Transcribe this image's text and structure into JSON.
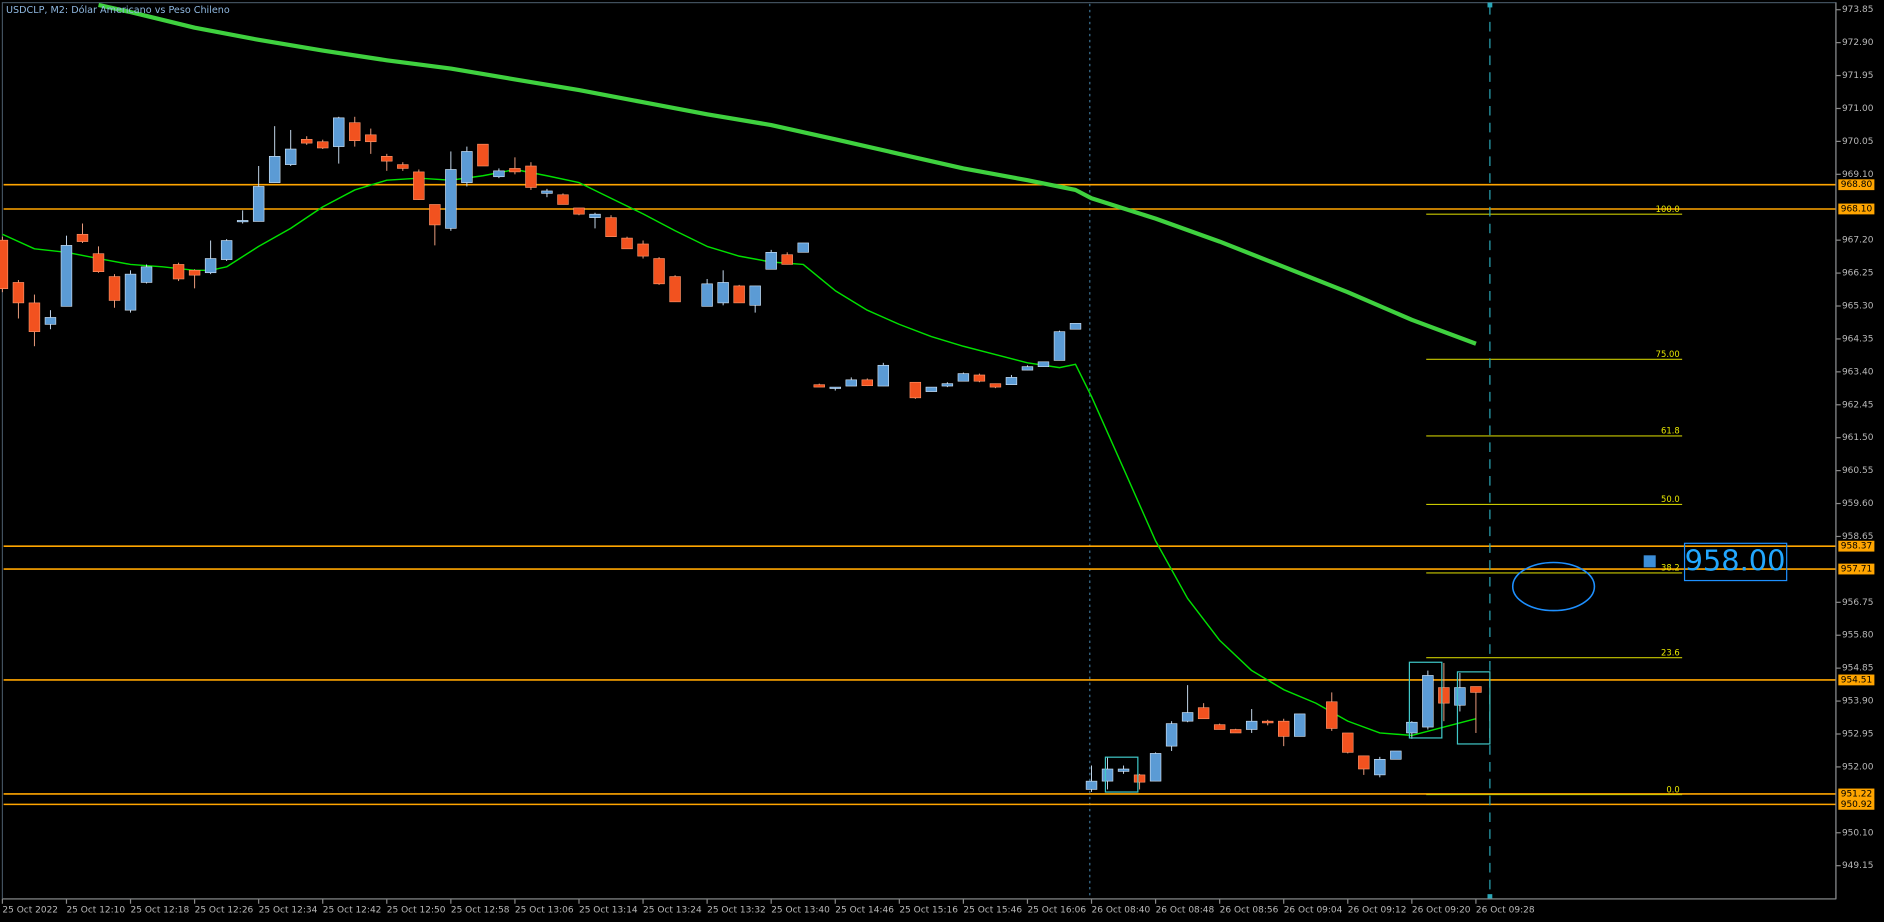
{
  "chart_data": {
    "type": "candlestick",
    "title": "USDCLP, M2:  Dólar Americano vs Peso Chileno",
    "categories": [
      "25 Oct 2022",
      null,
      null,
      null,
      "25 Oct 12:10",
      null,
      null,
      null,
      "25 Oct 12:18",
      null,
      null,
      null,
      "25 Oct 12:26",
      null,
      null,
      null,
      "25 Oct 12:34",
      null,
      null,
      null,
      "25 Oct 12:42",
      null,
      null,
      null,
      "25 Oct 12:50",
      null,
      null,
      null,
      "25 Oct 12:58",
      null,
      null,
      null,
      "25 Oct 13:06",
      null,
      null,
      null,
      "25 Oct 13:14",
      null,
      null,
      null,
      "25 Oct 13:24",
      null,
      null,
      null,
      "25 Oct 13:32",
      null,
      null,
      null,
      "25 Oct 13:40",
      null,
      null,
      null,
      "25 Oct 14:46",
      null,
      null,
      null,
      "25 Oct 15:16",
      null,
      null,
      null,
      "25 Oct 15:46",
      null,
      null,
      null,
      "25 Oct 16:06",
      null,
      null,
      null,
      "26 Oct 08:40",
      null,
      null,
      null,
      "26 Oct 08:48",
      null,
      null,
      null,
      "26 Oct 08:56",
      null,
      null,
      null,
      "26 Oct 09:04",
      null,
      null,
      null,
      "26 Oct 09:12",
      null,
      null,
      null,
      "26 Oct 09:20",
      null,
      null,
      null,
      "26 Oct 09:28"
    ],
    "open": [
      967.2,
      965.98,
      965.39,
      964.77,
      965.29,
      967.37,
      966.81,
      966.15,
      965.18,
      965.98,
      null,
      966.5,
      966.33,
      966.26,
      966.64,
      967.74,
      967.74,
      968.86,
      969.38,
      970.11,
      970.04,
      969.9,
      970.59,
      970.24,
      969.62,
      969.38,
      969.17,
      968.23,
      967.54,
      968.86,
      969.97,
      969.03,
      969.27,
      969.34,
      968.55,
      968.51,
      968.13,
      967.85,
      967.85,
      967.26,
      967.09,
      966.67,
      966.15,
      null,
      965.29,
      965.39,
      965.88,
      965.32,
      966.36,
      966.78,
      966.85,
      963.03,
      962.93,
      962.99,
      963.17,
      962.99,
      null,
      963.1,
      962.83,
      962.99,
      963.13,
      963.31,
      963.06,
      963.03,
      963.45,
      963.55,
      963.73,
      964.63,
      951.35,
      951.59,
      951.87,
      951.77,
      951.59,
      952.6,
      953.32,
      953.71,
      953.22,
      953.08,
      953.08,
      953.32,
      953.32,
      952.88,
      null,
      953.88,
      952.98,
      952.32,
      951.77,
      952.22,
      952.98,
      953.15,
      954.29,
      953.78,
      954.32
    ],
    "high": [
      967.3,
      966.05,
      965.63,
      965.18,
      967.33,
      967.68,
      967.02,
      966.22,
      966.33,
      966.5,
      null,
      966.55,
      966.36,
      967.19,
      967.23,
      968.06,
      969.34,
      970.49,
      970.38,
      970.2,
      970.1,
      970.76,
      970.76,
      970.42,
      969.69,
      969.45,
      969.24,
      968.23,
      969.76,
      969.9,
      969.97,
      969.27,
      969.59,
      969.45,
      968.68,
      968.55,
      968.13,
      967.99,
      967.92,
      967.3,
      967.19,
      966.71,
      966.19,
      null,
      966.08,
      966.33,
      965.91,
      965.88,
      966.92,
      966.85,
      967.12,
      963.06,
      962.96,
      963.24,
      963.21,
      963.66,
      null,
      963.1,
      962.96,
      963.1,
      963.38,
      963.35,
      963.06,
      963.31,
      963.59,
      963.69,
      964.59,
      964.8,
      952.04,
      952.29,
      952.04,
      951.8,
      952.42,
      953.32,
      954.36,
      953.84,
      953.25,
      953.1,
      953.67,
      953.36,
      953.39,
      953.53,
      null,
      954.15,
      952.98,
      952.32,
      952.29,
      952.46,
      953.32,
      954.78,
      955.0,
      954.71,
      954.32
    ],
    "low": [
      965.7,
      964.94,
      964.14,
      964.63,
      965.29,
      967.12,
      966.26,
      965.25,
      965.11,
      965.95,
      null,
      966.02,
      965.81,
      966.22,
      966.6,
      967.68,
      967.74,
      968.86,
      969.34,
      969.95,
      969.83,
      969.41,
      969.9,
      969.69,
      969.2,
      969.2,
      968.36,
      967.05,
      967.47,
      968.75,
      969.34,
      968.99,
      969.1,
      968.65,
      968.44,
      968.23,
      967.92,
      967.54,
      967.3,
      966.95,
      966.67,
      965.91,
      965.42,
      null,
      965.29,
      965.32,
      965.39,
      965.11,
      966.36,
      966.5,
      966.85,
      962.96,
      962.86,
      962.99,
      962.99,
      962.99,
      null,
      962.62,
      962.83,
      962.96,
      963.13,
      963.1,
      962.93,
      963.03,
      963.45,
      963.55,
      963.73,
      964.63,
      951.28,
      951.35,
      951.8,
      951.35,
      951.59,
      952.46,
      953.29,
      953.39,
      953.08,
      952.98,
      952.98,
      953.2,
      952.6,
      952.88,
      null,
      953.04,
      952.39,
      951.77,
      951.7,
      952.22,
      952.81,
      953.08,
      953.32,
      953.6,
      952.98
    ],
    "close": [
      965.8,
      965.39,
      964.56,
      964.97,
      967.05,
      967.16,
      966.29,
      965.46,
      966.22,
      966.43,
      null,
      966.08,
      966.19,
      966.67,
      967.19,
      967.77,
      968.75,
      969.62,
      969.83,
      970.0,
      969.86,
      970.73,
      970.07,
      970.04,
      969.48,
      969.27,
      968.37,
      967.64,
      969.24,
      969.76,
      969.34,
      969.2,
      969.17,
      968.72,
      968.62,
      968.23,
      967.95,
      967.95,
      967.3,
      966.95,
      966.74,
      965.94,
      965.42,
      null,
      965.94,
      965.98,
      965.39,
      965.88,
      966.85,
      966.5,
      967.12,
      962.96,
      962.96,
      963.17,
      963.0,
      963.59,
      null,
      962.65,
      962.96,
      963.06,
      963.35,
      963.13,
      962.96,
      963.24,
      963.55,
      963.69,
      964.56,
      964.8,
      951.59,
      951.94,
      951.94,
      951.56,
      952.39,
      953.25,
      953.57,
      953.39,
      953.08,
      952.98,
      953.32,
      953.27,
      952.88,
      953.53,
      null,
      953.11,
      952.42,
      951.94,
      952.22,
      952.46,
      953.29,
      954.64,
      953.84,
      954.29,
      954.15
    ],
    "up_color": "#5b9bd5",
    "down_color": "#f2521f",
    "series": [
      {
        "color": "#00e000",
        "x": [
          0,
          2,
          4,
          6,
          8,
          10,
          12,
          13,
          14,
          16,
          18,
          20,
          22,
          24,
          26,
          28,
          30,
          32,
          34,
          36,
          38,
          40,
          42,
          44,
          46,
          48,
          50,
          52,
          54,
          56,
          58,
          60,
          62,
          64,
          66,
          67,
          68,
          70,
          72,
          74,
          76,
          78,
          80,
          82,
          84,
          86,
          88,
          90,
          92
        ],
        "values": [
          967.37,
          966.95,
          966.85,
          966.67,
          966.5,
          966.43,
          966.33,
          966.33,
          966.43,
          967.02,
          967.54,
          968.16,
          968.65,
          968.93,
          968.99,
          968.93,
          969.06,
          969.24,
          969.06,
          968.86,
          968.41,
          967.96,
          967.47,
          967.02,
          966.74,
          966.57,
          966.5,
          965.74,
          965.18,
          964.77,
          964.42,
          964.14,
          963.9,
          963.66,
          963.52,
          963.62,
          962.69,
          960.61,
          958.52,
          956.86,
          955.65,
          954.78,
          954.23,
          953.84,
          953.32,
          952.98,
          952.91,
          953.15,
          953.39
        ]
      },
      {
        "color": "#3fd13f",
        "x": [
          6,
          8,
          12,
          16,
          20,
          24,
          28,
          32,
          36,
          40,
          44,
          48,
          52,
          56,
          60,
          64,
          67,
          68,
          72,
          76,
          80,
          84,
          88,
          92
        ],
        "values": [
          973.99,
          973.78,
          973.33,
          972.98,
          972.67,
          972.39,
          972.15,
          971.84,
          971.53,
          971.18,
          970.83,
          970.52,
          970.11,
          969.69,
          969.27,
          968.93,
          968.65,
          968.41,
          967.82,
          967.16,
          966.43,
          965.7,
          964.9,
          964.21
        ]
      }
    ],
    "ylim": [
      948.19,
      974.02
    ],
    "yticks": [
      973.85,
      {
        "value": 972.9,
        "label": "972.90"
      },
      971.95,
      {
        "value": 971,
        "label": "971.00"
      },
      970.05,
      {
        "value": 969.1,
        "label": "969.10"
      },
      {
        "value": 967.2,
        "label": "967.20"
      },
      966.25,
      {
        "value": 965.3,
        "label": "965.30"
      },
      964.35,
      {
        "value": 963.4,
        "label": "963.40"
      },
      962.45,
      {
        "value": 961.5,
        "label": "961.50"
      },
      960.55,
      {
        "value": 959.6,
        "label": "959.60"
      },
      958.65,
      956.75,
      {
        "value": 955.8,
        "label": "955.80"
      },
      954.85,
      {
        "value": 953.9,
        "label": "953.90"
      },
      952.95,
      {
        "value": 952,
        "label": "952.00"
      },
      {
        "value": 950.1,
        "label": "950.10"
      },
      949.15
    ],
    "hlines": [
      {
        "value": 968.8,
        "label": "968.80"
      },
      {
        "value": 968.1,
        "label": "968.10"
      },
      958.37,
      957.71,
      954.51,
      951.22,
      950.92
    ],
    "hline_color": "#ffa500",
    "fib": {
      "high": 967.95,
      "low": 951.2,
      "color": "#c8c800",
      "levels": [
        {
          "value": 100,
          "label": "100.0"
        },
        {
          "value": 75,
          "label": "75.00"
        },
        61.8,
        {
          "value": 50,
          "label": "50.0"
        },
        38.2,
        23.6,
        {
          "value": 0,
          "label": "0.0"
        }
      ]
    },
    "annotation": "958.00"
  }
}
